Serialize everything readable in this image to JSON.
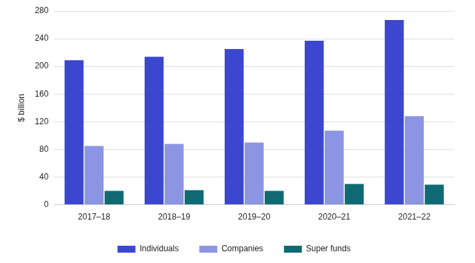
{
  "chart_data": {
    "type": "bar",
    "y_label": "$ billion",
    "categories": [
      "2017–18",
      "2018–19",
      "2019–20",
      "2020–21",
      "2021–22"
    ],
    "series": [
      {
        "name": "Individuals",
        "color": "#3b47cf",
        "values": [
          209,
          214,
          225,
          237,
          267
        ]
      },
      {
        "name": "Companies",
        "color": "#8c94e4",
        "values": [
          85,
          88,
          90,
          107,
          128
        ]
      },
      {
        "name": "Super funds",
        "color": "#0f6b73",
        "values": [
          20,
          21,
          20,
          30,
          29
        ]
      }
    ],
    "ylim": [
      0,
      280
    ],
    "yticks": [
      0,
      40,
      80,
      120,
      160,
      200,
      240,
      280
    ],
    "grid": true,
    "legend": "bottom"
  }
}
